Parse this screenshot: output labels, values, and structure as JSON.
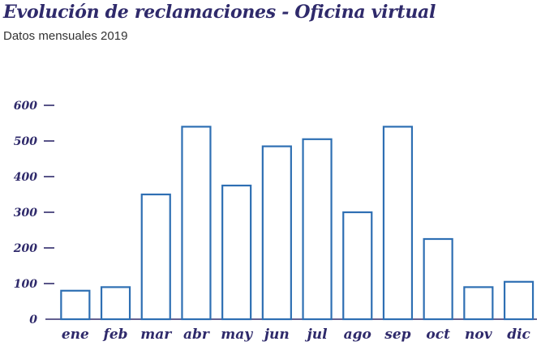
{
  "chart_data": {
    "type": "bar",
    "title": "Evolución de reclamaciones - Oficina virtual",
    "subtitle": "Datos mensuales 2019",
    "categories": [
      "ene",
      "feb",
      "mar",
      "abr",
      "may",
      "jun",
      "jul",
      "ago",
      "sep",
      "oct",
      "nov",
      "dic"
    ],
    "values": [
      80,
      90,
      350,
      540,
      375,
      485,
      505,
      300,
      540,
      225,
      90,
      105
    ],
    "yticks": [
      "0",
      "100",
      "200",
      "300",
      "400",
      "500",
      "600"
    ],
    "ylim": [
      0,
      600
    ],
    "grid": false,
    "colors": {
      "bar_stroke": "#2e6fb3",
      "text": "#2f2a6b",
      "axis": "#2f2a6b"
    }
  }
}
